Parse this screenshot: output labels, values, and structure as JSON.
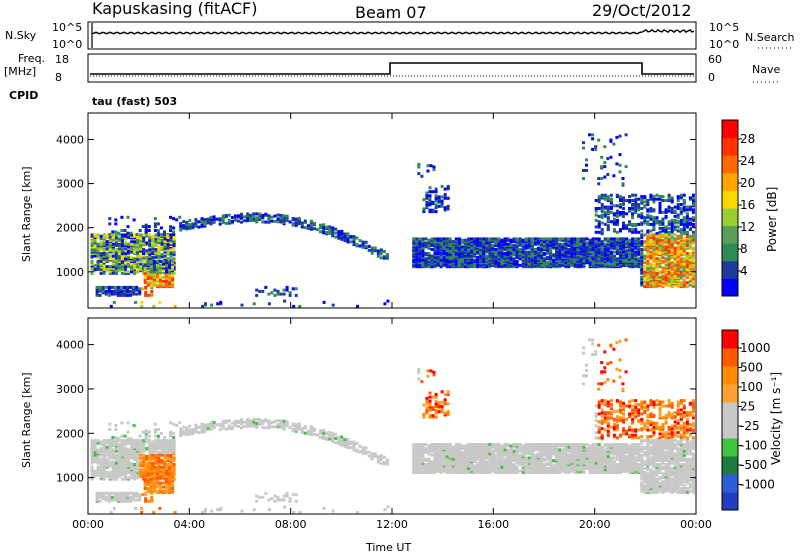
{
  "header": {
    "station": "Kapuskasing (fitACF)",
    "beam": "Beam 07",
    "date": "29/Oct/2012"
  },
  "panels": {
    "nsky": {
      "label": "N.Sky",
      "ytick_hi": "10^5",
      "ytick_lo": "10^0",
      "right_label": "N.Search",
      "right_tick_hi": "10^5",
      "right_tick_lo": "10^0"
    },
    "freq": {
      "label": "Freq.",
      "unit": "[MHz]",
      "ytick_hi": "18",
      "ytick_lo": "8",
      "right_label": "Nave",
      "right_tick_hi": "60",
      "right_tick_lo": "0"
    },
    "cpid": {
      "label": "CPID",
      "text": "tau (fast) 503"
    }
  },
  "colors": {
    "power": [
      "#0000ff",
      "#1e3a9e",
      "#2e8b57",
      "#5a9e5a",
      "#9acd32",
      "#ffd700",
      "#ffa500",
      "#ff6a00",
      "#ff3300",
      "#ff0000"
    ],
    "velocity": [
      "#1f3fbf",
      "#2a5fd8",
      "#1e7a3e",
      "#3ec43e",
      "#c8c8c8",
      "#c8c8c8",
      "#ffa033",
      "#ff8c00",
      "#ff5a00",
      "#ff0000"
    ]
  },
  "chart_data": [
    {
      "type": "heatmap",
      "name": "power",
      "ylabel": "Slant Range [km]",
      "y_ticks": [
        "1000",
        "2000",
        "3000",
        "4000"
      ],
      "x_ticks": [
        "00:00",
        "04:00",
        "08:00",
        "12:00",
        "16:00",
        "20:00",
        "00:00"
      ],
      "xlim_hours": [
        0,
        24
      ],
      "ylim_km": [
        180,
        4600
      ],
      "colorbar": {
        "label": "Power [dB]",
        "ticks": [
          "4",
          "8",
          "12",
          "16",
          "20",
          "24",
          "28"
        ]
      },
      "grid": false
    },
    {
      "type": "heatmap",
      "name": "velocity",
      "ylabel": "Slant Range [km]",
      "y_ticks": [
        "1000",
        "2000",
        "3000",
        "4000"
      ],
      "x_ticks": [
        "00:00",
        "04:00",
        "08:00",
        "12:00",
        "16:00",
        "20:00",
        "00:00"
      ],
      "xlabel": "Time UT",
      "xlim_hours": [
        0,
        24
      ],
      "ylim_km": [
        180,
        4600
      ],
      "colorbar": {
        "label": "Velocity [m s⁻¹]",
        "ticks": [
          "1000",
          "500",
          "100",
          "25",
          "-25",
          "-100",
          "-500",
          "-1000"
        ]
      },
      "grid": false
    }
  ]
}
